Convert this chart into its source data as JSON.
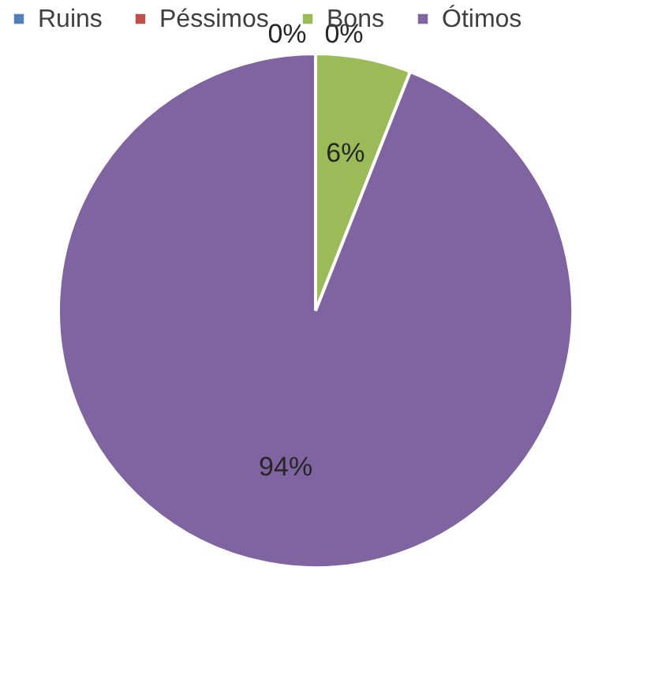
{
  "chart_data": {
    "type": "pie",
    "categories": [
      "Ruins",
      "Péssimos",
      "Bons",
      "Ótimos"
    ],
    "values": [
      0,
      0,
      6,
      94
    ],
    "colors": [
      "#4f81bd",
      "#c0504d",
      "#9bbb59",
      "#8064a2"
    ],
    "value_labels": [
      "0%",
      "0%",
      "6%",
      "94%"
    ],
    "legend": "top"
  }
}
